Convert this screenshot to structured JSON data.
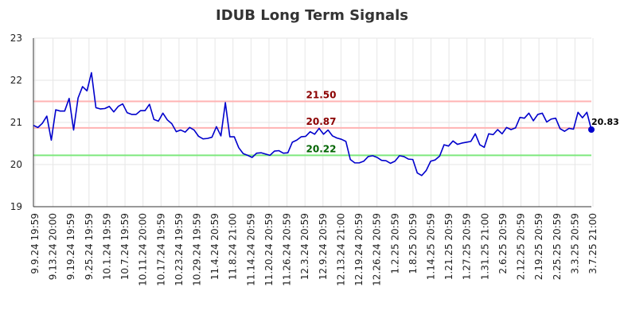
{
  "chart_data": {
    "type": "line",
    "title": "IDUB Long Term Signals",
    "xlabel": "",
    "ylabel": "",
    "ylim": [
      19,
      23
    ],
    "yticks": [
      19,
      20,
      21,
      22,
      23
    ],
    "grid": true,
    "x_tick_labels": [
      "9.9.24 19:59",
      "9.13.24 20:00",
      "9.19.24 19:59",
      "9.25.24 19:59",
      "10.1.24 19:59",
      "10.7.24 19:59",
      "10.11.24 20:00",
      "10.17.24 19:59",
      "10.23.24 19:59",
      "10.29.24 19:59",
      "11.4.24 20:59",
      "11.8.24 21:00",
      "11.14.24 20:59",
      "11.20.24 20:59",
      "11.26.24 20:59",
      "12.3.24 20:59",
      "12.9.24 20:59",
      "12.13.24 21:00",
      "12.19.24 20:59",
      "12.26.24 20:59",
      "1.2.25 20:59",
      "1.8.25 20:59",
      "1.14.25 20:59",
      "1.21.25 20:59",
      "1.27.25 20:59",
      "1.31.25 21:00",
      "2.6.25 20:59",
      "2.12.25 20:59",
      "2.19.25 20:59",
      "2.25.25 20:59",
      "3.3.25 20:59",
      "3.7.25 21:00"
    ],
    "series": [
      {
        "color": "#0000cc",
        "values": [
          20.93,
          20.88,
          20.98,
          21.15,
          20.58,
          21.3,
          21.27,
          21.27,
          21.57,
          20.82,
          21.58,
          21.85,
          21.75,
          22.18,
          21.35,
          21.32,
          21.33,
          21.38,
          21.25,
          21.38,
          21.44,
          21.23,
          21.19,
          21.19,
          21.28,
          21.28,
          21.43,
          21.07,
          21.03,
          21.22,
          21.06,
          20.97,
          20.78,
          20.82,
          20.77,
          20.88,
          20.82,
          20.67,
          20.61,
          20.62,
          20.65,
          20.9,
          20.68,
          21.47,
          20.66,
          20.66,
          20.4,
          20.26,
          20.22,
          20.17,
          20.27,
          20.28,
          20.25,
          20.22,
          20.32,
          20.33,
          20.27,
          20.28,
          20.53,
          20.58,
          20.66,
          20.67,
          20.78,
          20.72,
          20.86,
          20.72,
          20.82,
          20.68,
          20.63,
          20.6,
          20.55,
          20.12,
          20.04,
          20.04,
          20.08,
          20.19,
          20.21,
          20.17,
          20.1,
          20.09,
          20.03,
          20.08,
          20.21,
          20.19,
          20.13,
          20.12,
          19.8,
          19.74,
          19.86,
          20.08,
          20.11,
          20.2,
          20.47,
          20.44,
          20.56,
          20.48,
          20.51,
          20.53,
          20.55,
          20.73,
          20.47,
          20.41,
          20.73,
          20.71,
          20.83,
          20.73,
          20.88,
          20.83,
          20.87,
          21.12,
          21.1,
          21.22,
          21.04,
          21.19,
          21.22,
          21.01,
          21.08,
          21.1,
          20.85,
          20.79,
          20.86,
          20.84,
          21.24,
          21.11,
          21.24,
          20.83
        ]
      }
    ],
    "levels": [
      {
        "value": 21.5,
        "label": "21.50",
        "line_color": "#ffb3b3",
        "text_color": "#8b0000"
      },
      {
        "value": 20.87,
        "label": "20.87",
        "line_color": "#ffb3b3",
        "text_color": "#8b0000"
      },
      {
        "value": 20.22,
        "label": "20.22",
        "line_color": "#7de87d",
        "text_color": "#006400"
      }
    ],
    "last_value_label": "20.83"
  }
}
